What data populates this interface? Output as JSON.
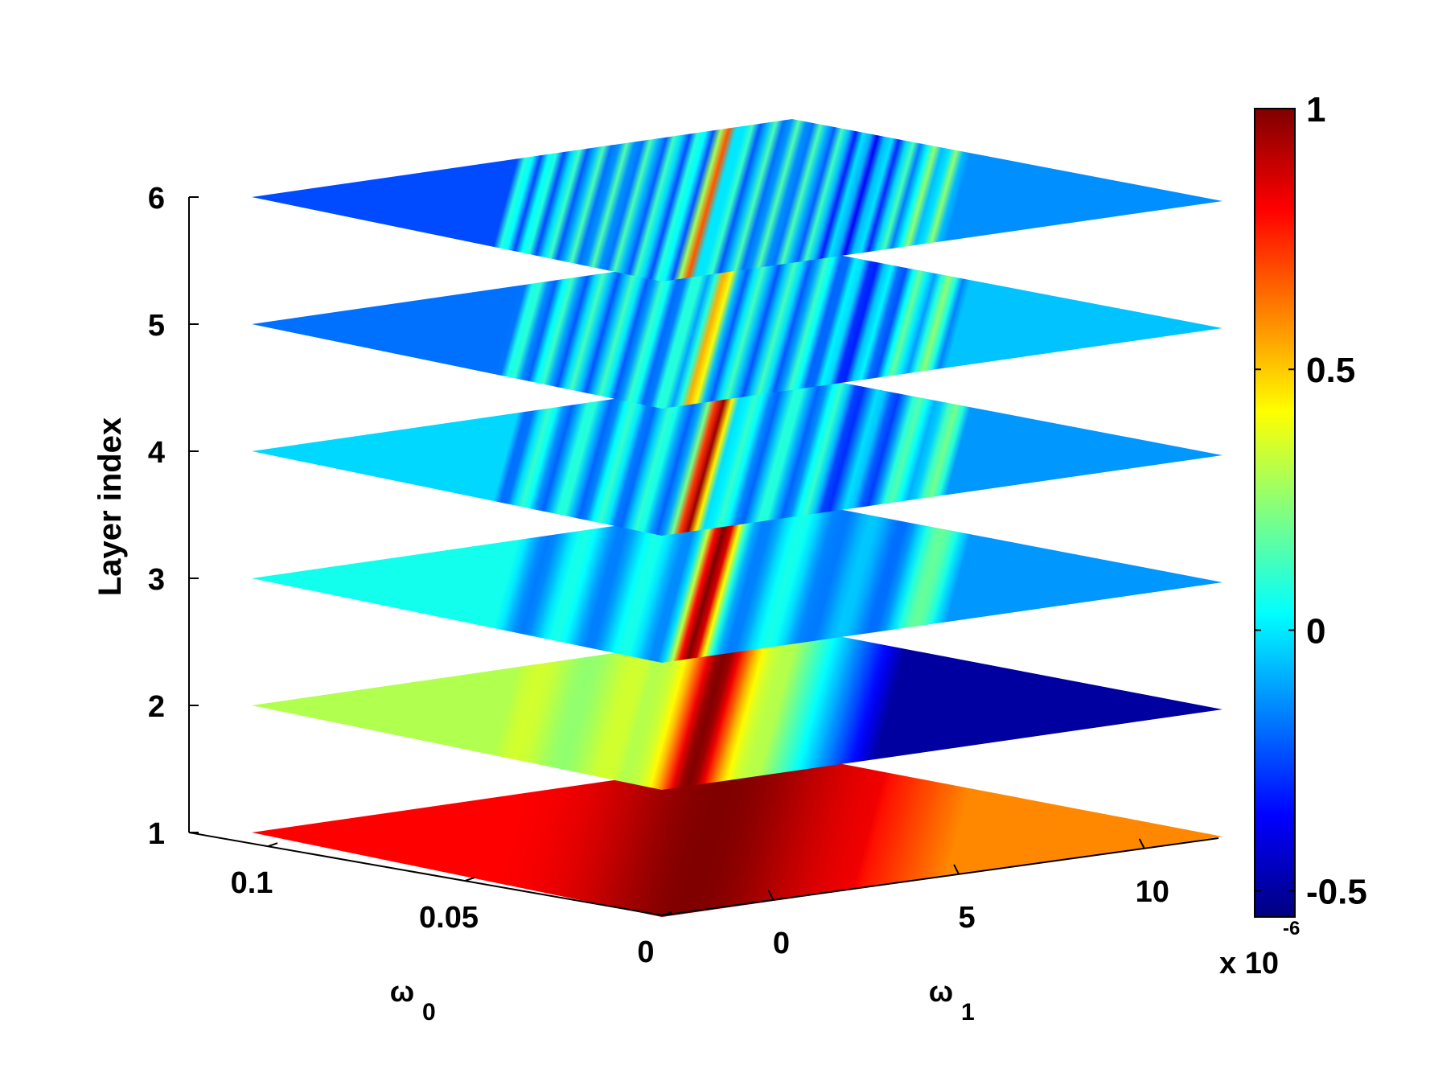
{
  "chart_data": {
    "type": "heatmap",
    "subtype": "stacked-3d-slices",
    "title": "",
    "zlabel": "Layer index",
    "xlabel": "ω",
    "xlabel_subscript": "0",
    "ylabel": "ω",
    "ylabel_subscript": "1",
    "layers": [
      1,
      2,
      3,
      4,
      5,
      6
    ],
    "zlim": [
      1,
      6
    ],
    "z_ticks": [
      "1",
      "2",
      "3",
      "4",
      "5",
      "6"
    ],
    "omega0_lim": [
      0,
      0.12
    ],
    "omega0_ticks": [
      {
        "value": 0.1,
        "label": "0.1"
      },
      {
        "value": 0.05,
        "label": "0.05"
      },
      {
        "value": 0,
        "label": "0"
      }
    ],
    "omega1_lim": [
      -3,
      12
    ],
    "omega1_ticks": [
      {
        "value": 0,
        "label": "0"
      },
      {
        "value": 5,
        "label": "5"
      },
      {
        "value": 10,
        "label": "10"
      }
    ],
    "omega1_multiplier_text": "x 10",
    "omega1_multiplier_exp": "-6",
    "colormap": "jet",
    "clim": [
      -0.55,
      1.0
    ],
    "colorbar_ticks": [
      {
        "value": 1,
        "label": "1"
      },
      {
        "value": 0.5,
        "label": "0.5"
      },
      {
        "value": 0,
        "label": "0"
      },
      {
        "value": -0.5,
        "label": "-0.5"
      }
    ],
    "layer_description": [
      {
        "layer": 1,
        "pattern": "broad high band",
        "peak_value": 1.0,
        "background_value": 0.8
      },
      {
        "layer": 2,
        "pattern": "wide diagonal ridge",
        "peak_value": 1.0,
        "background_value": 0.3,
        "trough_value": -0.5
      },
      {
        "layer": 3,
        "pattern": "narrow diagonal ridge",
        "peak_value": 1.0,
        "background_value": 0.0,
        "trough_value": -0.3
      },
      {
        "layer": 4,
        "pattern": "thin diagonal ridge with ripples",
        "peak_value": 1.0,
        "background_value": 0.0,
        "trough_value": -0.3
      },
      {
        "layer": 5,
        "pattern": "faint diagonal ridge with many ripples",
        "peak_value": 0.5,
        "background_value": 0.0,
        "trough_value": -0.3
      },
      {
        "layer": 6,
        "pattern": "very fine ripples with crossing point",
        "peak_value": 0.6,
        "background_value": 0.0,
        "trough_value": -0.3
      }
    ],
    "colors": {
      "jet_dark_red": "#800000",
      "jet_red": "#ff0000",
      "jet_yellow": "#ffff00",
      "jet_cyan": "#00ffff",
      "jet_blue": "#0000ff",
      "jet_dark_blue": "#00008f",
      "axis": "#000000"
    }
  }
}
